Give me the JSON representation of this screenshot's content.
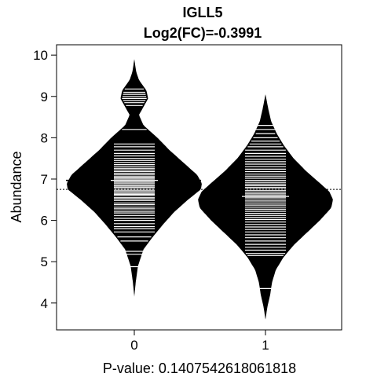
{
  "chart_data": {
    "type": "beanplot",
    "title": "IGLL5",
    "subtitle": "Log2(FC)=-0.3991",
    "xlabel": "P-value: 0.1407542618061818",
    "ylabel": "Abundance",
    "categories": [
      "0",
      "1"
    ],
    "ylim": [
      3.35,
      10.25
    ],
    "yticks": [
      "4",
      "5",
      "6",
      "7",
      "8",
      "9",
      "10"
    ],
    "overall_mean": 6.75,
    "series": [
      {
        "category": "0",
        "mean": 6.97,
        "y_range": [
          4.15,
          9.9
        ],
        "density_profile": [
          [
            4.15,
            0.0
          ],
          [
            4.5,
            0.015
          ],
          [
            4.9,
            0.04
          ],
          [
            5.3,
            0.1
          ],
          [
            5.6,
            0.2
          ],
          [
            5.9,
            0.31
          ],
          [
            6.2,
            0.43
          ],
          [
            6.5,
            0.58
          ],
          [
            6.75,
            0.72
          ],
          [
            6.9,
            0.73
          ],
          [
            7.1,
            0.68
          ],
          [
            7.4,
            0.53
          ],
          [
            7.7,
            0.38
          ],
          [
            8.0,
            0.25
          ],
          [
            8.3,
            0.1
          ],
          [
            8.55,
            0.05
          ],
          [
            8.75,
            0.1
          ],
          [
            8.95,
            0.15
          ],
          [
            9.15,
            0.13
          ],
          [
            9.4,
            0.05
          ],
          [
            9.6,
            0.02
          ],
          [
            9.9,
            0.0
          ]
        ],
        "observations": [
          4.88,
          5.18,
          5.25,
          5.5,
          5.6,
          5.72,
          5.8,
          5.85,
          5.92,
          6.0,
          6.05,
          6.12,
          6.18,
          6.22,
          6.28,
          6.32,
          6.38,
          6.42,
          6.48,
          6.52,
          6.55,
          6.6,
          6.63,
          6.66,
          6.7,
          6.73,
          6.76,
          6.8,
          6.83,
          6.86,
          6.9,
          6.93,
          6.96,
          7.0,
          7.03,
          7.06,
          7.1,
          7.14,
          7.18,
          7.22,
          7.26,
          7.3,
          7.35,
          7.4,
          7.45,
          7.5,
          7.56,
          7.62,
          7.7,
          7.78,
          7.85,
          8.2,
          8.78,
          8.85,
          8.9,
          8.95,
          9.0,
          9.05,
          9.1,
          9.18
        ]
      },
      {
        "category": "1",
        "mean": 6.58,
        "y_range": [
          3.6,
          9.05
        ],
        "density_profile": [
          [
            3.6,
            0.0
          ],
          [
            3.9,
            0.02
          ],
          [
            4.2,
            0.05
          ],
          [
            4.5,
            0.07
          ],
          [
            4.8,
            0.11
          ],
          [
            5.1,
            0.19
          ],
          [
            5.4,
            0.3
          ],
          [
            5.7,
            0.44
          ],
          [
            6.0,
            0.58
          ],
          [
            6.3,
            0.7
          ],
          [
            6.5,
            0.72
          ],
          [
            6.7,
            0.68
          ],
          [
            6.9,
            0.58
          ],
          [
            7.2,
            0.43
          ],
          [
            7.5,
            0.3
          ],
          [
            7.8,
            0.2
          ],
          [
            8.1,
            0.12
          ],
          [
            8.4,
            0.06
          ],
          [
            8.7,
            0.03
          ],
          [
            9.05,
            0.0
          ]
        ],
        "observations": [
          4.35,
          5.15,
          5.2,
          5.28,
          5.35,
          5.42,
          5.5,
          5.58,
          5.65,
          5.72,
          5.78,
          5.84,
          5.9,
          5.96,
          6.02,
          6.07,
          6.12,
          6.17,
          6.22,
          6.27,
          6.32,
          6.37,
          6.42,
          6.47,
          6.52,
          6.56,
          6.6,
          6.64,
          6.68,
          6.72,
          6.76,
          6.8,
          6.84,
          6.88,
          6.92,
          6.97,
          7.02,
          7.07,
          7.12,
          7.18,
          7.24,
          7.3,
          7.36,
          7.42,
          7.48,
          7.55,
          7.62,
          7.7,
          7.78,
          7.85,
          7.92,
          8.0,
          8.1,
          8.2,
          8.3
        ]
      }
    ]
  }
}
